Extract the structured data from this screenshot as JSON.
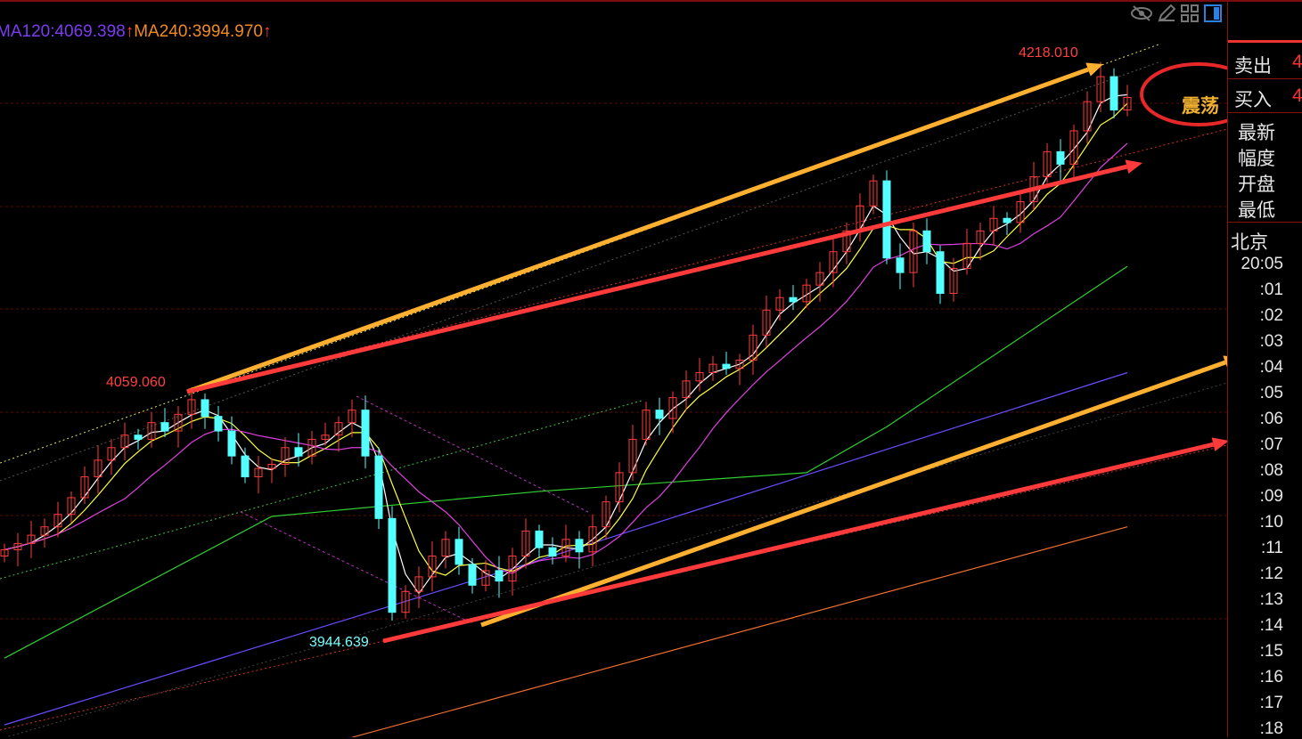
{
  "legend": {
    "ma120": "MA120:4069.398",
    "ma240": "MA240:3994.970",
    "up_arrow": "↑"
  },
  "annotations": {
    "text": "震荡",
    "high_label": "4218.010",
    "mid_label": "4059.060",
    "low_label": "3944.639"
  },
  "toolbar": {
    "icons": [
      "eye-hidden-icon",
      "pencil-icon",
      "grid-icon",
      "panel-toggle-icon"
    ]
  },
  "side_panel": {
    "sell_label": "卖出",
    "sell_value": "4",
    "buy_label": "买入",
    "buy_value": "4",
    "fields": [
      "最新",
      "幅度",
      "开盘",
      "最低"
    ],
    "region": "北京",
    "times": [
      "20:05",
      ":01",
      ":02",
      ":03",
      ":04",
      ":05",
      ":06",
      ":07",
      ":08",
      ":09",
      ":10",
      ":11",
      ":12",
      ":13",
      ":14",
      ":15",
      ":16",
      ":17",
      ":18"
    ]
  },
  "colors": {
    "up": "#ff3b3b",
    "down": "#54ffff",
    "ma_short1": "#ffffff",
    "ma_short2": "#ffff40",
    "ma_short3": "#e040e0",
    "ma60": "#30d030",
    "ma120": "#6a4cff",
    "ma240": "#f07030",
    "arrow_yellow": "#ffb030",
    "arrow_red": "#ff3a3a"
  },
  "chart_data": {
    "type": "candlestick",
    "ylim": [
      3880,
      4230
    ],
    "closes": [
      3985,
      3988,
      3992,
      3996,
      4002,
      4010,
      4020,
      4028,
      4034,
      4040,
      4038,
      4046,
      4042,
      4050,
      4057,
      4049,
      4042,
      4030,
      4020,
      4024,
      4026,
      4034,
      4030,
      4038,
      4040,
      4046,
      4052,
      4030,
      4000,
      3955,
      3965,
      3972,
      3982,
      3990,
      3978,
      3968,
      3975,
      3970,
      3982,
      3994,
      3986,
      3982,
      3990,
      3984,
      3996,
      4008,
      4022,
      4038,
      4052,
      4048,
      4058,
      4066,
      4070,
      4074,
      4072,
      4076,
      4088,
      4100,
      4106,
      4104,
      4112,
      4118,
      4128,
      4138,
      4150,
      4162,
      4125,
      4118,
      4138,
      4128,
      4108,
      4120,
      4132,
      4138,
      4144,
      4142,
      4152,
      4164,
      4176,
      4170,
      4186,
      4200,
      4212,
      4196,
      4202
    ],
    "extremes": [
      {
        "index": 14,
        "price": 4059.06
      },
      {
        "index": 29,
        "price": 3944.639
      },
      {
        "index": 82,
        "price": 4218.01
      }
    ],
    "ma60": [
      [
        0,
        3933
      ],
      [
        20,
        4001
      ],
      [
        40,
        4013
      ],
      [
        60,
        4022
      ],
      [
        66,
        4044
      ],
      [
        84,
        4121
      ]
    ],
    "ma120": [
      [
        0,
        3901
      ],
      [
        40,
        3980
      ],
      [
        84,
        4070
      ]
    ],
    "ma240": [
      [
        26,
        3895
      ],
      [
        84,
        3996
      ]
    ]
  }
}
